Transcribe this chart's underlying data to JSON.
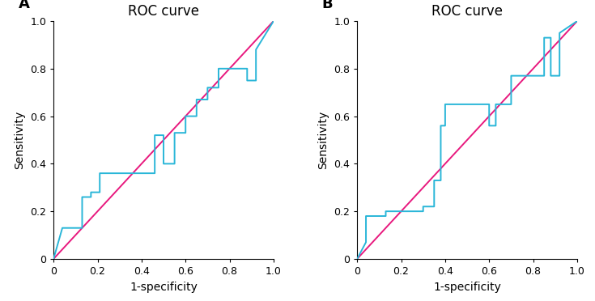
{
  "title": "ROC curve",
  "xlabel": "1-specificity",
  "ylabel": "Sensitivity",
  "panel_A_label": "A",
  "panel_B_label": "B",
  "roc_color": "#29b6d8",
  "diag_color": "#e8197e",
  "roc_linewidth": 1.4,
  "diag_linewidth": 1.4,
  "xlim": [
    0,
    1.0
  ],
  "ylim": [
    0,
    1.0
  ],
  "xticks": [
    0,
    0.2,
    0.4,
    0.6,
    0.8,
    1.0
  ],
  "yticks": [
    0,
    0.2,
    0.4,
    0.6,
    0.8,
    1.0
  ],
  "curve_A_fpr": [
    0.0,
    0.04,
    0.04,
    0.13,
    0.13,
    0.17,
    0.17,
    0.21,
    0.21,
    0.46,
    0.46,
    0.5,
    0.5,
    0.55,
    0.55,
    0.6,
    0.6,
    0.65,
    0.65,
    0.7,
    0.7,
    0.75,
    0.75,
    0.88,
    0.88,
    0.92,
    0.92,
    1.0
  ],
  "curve_A_tpr": [
    0.0,
    0.13,
    0.13,
    0.13,
    0.26,
    0.26,
    0.28,
    0.28,
    0.36,
    0.36,
    0.52,
    0.52,
    0.4,
    0.4,
    0.53,
    0.53,
    0.6,
    0.6,
    0.67,
    0.67,
    0.72,
    0.72,
    0.8,
    0.8,
    0.75,
    0.75,
    0.88,
    1.0
  ],
  "curve_B_fpr": [
    0.0,
    0.04,
    0.04,
    0.13,
    0.13,
    0.3,
    0.3,
    0.35,
    0.35,
    0.38,
    0.38,
    0.4,
    0.4,
    0.6,
    0.6,
    0.63,
    0.63,
    0.7,
    0.7,
    0.85,
    0.85,
    0.88,
    0.88,
    0.92,
    0.92,
    1.0
  ],
  "curve_B_tpr": [
    0.0,
    0.07,
    0.18,
    0.18,
    0.2,
    0.2,
    0.22,
    0.22,
    0.33,
    0.33,
    0.56,
    0.56,
    0.65,
    0.65,
    0.56,
    0.56,
    0.65,
    0.65,
    0.77,
    0.77,
    0.93,
    0.93,
    0.77,
    0.77,
    0.95,
    1.0
  ],
  "background_color": "#ffffff",
  "title_fontsize": 12,
  "label_fontsize": 10,
  "tick_fontsize": 9,
  "panel_label_fontsize": 13
}
